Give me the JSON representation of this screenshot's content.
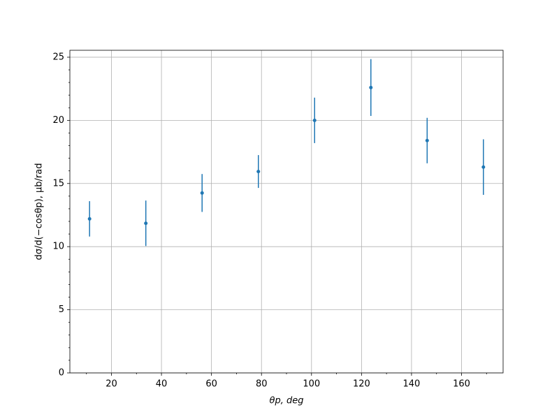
{
  "chart_data": {
    "type": "errorbar",
    "xlabel": "θp, deg",
    "ylabel": "dσ/d(−cosθp), μb/rad",
    "x": [
      11.25,
      33.75,
      56.25,
      78.75,
      101.25,
      123.75,
      146.25,
      168.75
    ],
    "values": [
      12.2,
      11.85,
      14.25,
      15.95,
      20.0,
      22.6,
      18.4,
      16.3
    ],
    "errors": [
      1.4,
      1.8,
      1.5,
      1.3,
      1.8,
      2.25,
      1.8,
      2.2
    ],
    "color": "#1f77b4",
    "xlim": [
      3.375,
      176.625
    ],
    "ylim": [
      0,
      25.55
    ],
    "xticks": [
      20,
      40,
      60,
      80,
      100,
      120,
      140,
      160
    ],
    "yticks": [
      0,
      5,
      10,
      15,
      20,
      25
    ],
    "xminorticks": [
      10,
      30,
      50,
      70,
      90,
      110,
      130,
      150,
      170
    ],
    "yminorticks": [
      1,
      2,
      3,
      4,
      6,
      7,
      8,
      9,
      11,
      12,
      13,
      14,
      16,
      17,
      18,
      19,
      21,
      22,
      23,
      24
    ],
    "grid": true
  }
}
